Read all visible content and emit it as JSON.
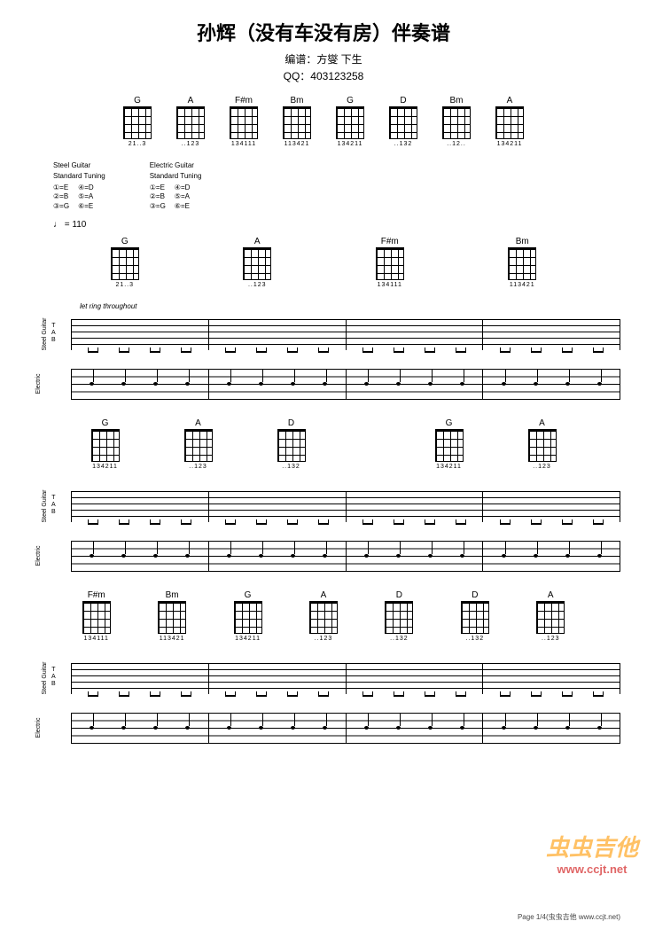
{
  "header": {
    "title": "孙辉（没有车没有房）伴奏谱",
    "subtitle": "编谱：方燮 下生",
    "qq": "QQ：403123258"
  },
  "top_chords": [
    {
      "name": "G",
      "fingering": "21..3"
    },
    {
      "name": "A",
      "fingering": "..123"
    },
    {
      "name": "F#m",
      "fingering": "134111"
    },
    {
      "name": "Bm",
      "fingering": "113421"
    },
    {
      "name": "G",
      "fingering": "134211"
    },
    {
      "name": "D",
      "fingering": "..132"
    },
    {
      "name": "Bm",
      "fingering": "..12.."
    },
    {
      "name": "A",
      "fingering": "134211"
    }
  ],
  "tuning": [
    {
      "title": "Steel Guitar",
      "sub": "Standard Tuning",
      "cols": [
        [
          "①=E",
          "②=B",
          "③=G"
        ],
        [
          "④=D",
          "⑤=A",
          "⑥=E"
        ]
      ]
    },
    {
      "title": "Electric Guitar",
      "sub": "Standard Tuning",
      "cols": [
        [
          "①=E",
          "②=B",
          "③=G"
        ],
        [
          "④=D",
          "⑤=A",
          "⑥=E"
        ]
      ]
    }
  ],
  "tempo": "♩ = 110",
  "systems": [
    {
      "chord_row": [
        {
          "name": "G",
          "fingering": "21..3"
        },
        {
          "name": "A",
          "fingering": "..123"
        },
        {
          "name": "F#m",
          "fingering": "134111"
        },
        {
          "name": "Bm",
          "fingering": "113421"
        }
      ],
      "ring_text": "let ring throughout",
      "measures": 4,
      "tracks": [
        "Steel Guitar",
        "Electric"
      ]
    },
    {
      "chord_row": [
        {
          "name": "G",
          "fingering": "134211"
        },
        {
          "name": "A",
          "fingering": "..123"
        },
        {
          "name": "D",
          "fingering": "..132"
        },
        {
          "name": "",
          "fingering": ""
        },
        {
          "name": "G",
          "fingering": "134211"
        },
        {
          "name": "A",
          "fingering": "..123"
        }
      ],
      "measures": 4,
      "tracks": [
        "Steel Guitar",
        "Electric"
      ]
    },
    {
      "chord_row": [
        {
          "name": "F#m",
          "fingering": "134111"
        },
        {
          "name": "Bm",
          "fingering": "113421"
        },
        {
          "name": "G",
          "fingering": "134211"
        },
        {
          "name": "A",
          "fingering": "..123"
        },
        {
          "name": "D",
          "fingering": "..132"
        },
        {
          "name": "D",
          "fingering": "..132"
        },
        {
          "name": "A",
          "fingering": "..123"
        }
      ],
      "measures": 4,
      "tracks": [
        "Steel Guitar",
        "Electric"
      ]
    }
  ],
  "watermark": {
    "line1": "虫虫吉他",
    "line2": "www.ccjt.net"
  },
  "footer": "Page 1/4(虫虫吉他 www.ccjt.net)",
  "colors": {
    "text": "#000000",
    "background": "#ffffff",
    "watermark_top": "#ff9900",
    "watermark_bottom": "#cc0000"
  }
}
